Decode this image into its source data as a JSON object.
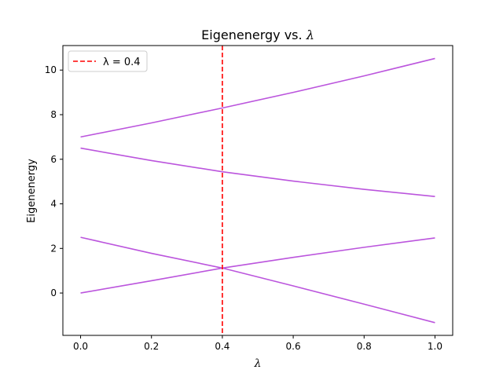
{
  "chart_data": {
    "type": "line",
    "title_prefix": "Eigenenergy vs. ",
    "title_symbol": "λ",
    "xlabel": "λ",
    "ylabel": "Eigenenergy",
    "xlim": [
      -0.05,
      1.05
    ],
    "ylim": [
      -1.9,
      11.1
    ],
    "xticks": [
      0.0,
      0.2,
      0.4,
      0.6,
      0.8,
      1.0
    ],
    "xtick_labels": [
      "0.0",
      "0.2",
      "0.4",
      "0.6",
      "0.8",
      "1.0"
    ],
    "yticks": [
      0,
      2,
      4,
      6,
      8,
      10
    ],
    "ytick_labels": [
      "0",
      "2",
      "4",
      "6",
      "8",
      "10"
    ],
    "grid": false,
    "line_color": "#bb55dd",
    "x": [
      0.0,
      0.2,
      0.4,
      0.6,
      0.8,
      1.0
    ],
    "series": [
      {
        "values": [
          7.0,
          7.63,
          8.3,
          9.0,
          9.74,
          10.52
        ]
      },
      {
        "values": [
          6.5,
          5.94,
          5.44,
          5.02,
          4.65,
          4.33
        ]
      },
      {
        "values": [
          2.5,
          1.78,
          1.12,
          0.32,
          -0.5,
          -1.33
        ]
      },
      {
        "values": [
          0.0,
          0.55,
          1.12,
          1.6,
          2.05,
          2.47
        ]
      }
    ],
    "vline": {
      "x": 0.4,
      "color": "#ff0000",
      "style": "dashed",
      "legend_label": "λ = 0.4"
    },
    "legend_position": "top-left"
  }
}
